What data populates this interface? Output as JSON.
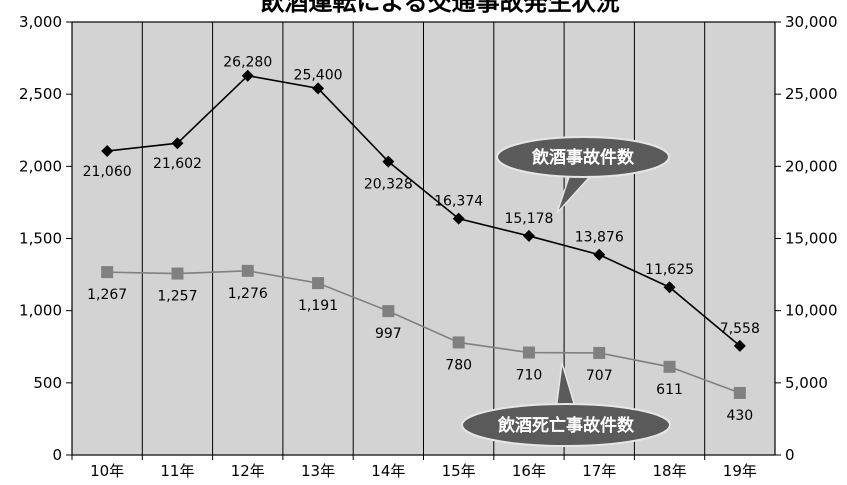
{
  "chart_data": {
    "type": "line",
    "title": "飲酒運転による交通事故発生状況",
    "categories": [
      "10年",
      "11年",
      "12年",
      "13年",
      "14年",
      "15年",
      "16年",
      "17年",
      "18年",
      "19年"
    ],
    "y_left": {
      "ylim": [
        0,
        3000
      ],
      "ticks": [
        "0",
        "500",
        "1,000",
        "1,500",
        "2,000",
        "2,500",
        "3,000"
      ],
      "tick_values": [
        0,
        500,
        1000,
        1500,
        2000,
        2500,
        3000
      ]
    },
    "y_right": {
      "ylim": [
        0,
        30000
      ],
      "ticks": [
        "0",
        "5,000",
        "10,000",
        "15,000",
        "20,000",
        "25,000",
        "30,000"
      ],
      "tick_values": [
        0,
        5000,
        10000,
        15000,
        20000,
        25000,
        30000
      ]
    },
    "series": [
      {
        "name": "飲酒事故件数",
        "axis": "right",
        "marker": "diamond",
        "color": "#000000",
        "values": [
          21060,
          21602,
          26280,
          25400,
          20328,
          16374,
          15178,
          13876,
          11625,
          7558
        ],
        "labels": [
          "21,060",
          "21,602",
          "26,280",
          "25,400",
          "20,328",
          "16,374",
          "15,178",
          "13,876",
          "11,625",
          "7,558"
        ]
      },
      {
        "name": "飲酒死亡事故件数",
        "axis": "left",
        "marker": "square",
        "color": "#808080",
        "values": [
          1267,
          1257,
          1276,
          1191,
          997,
          780,
          710,
          707,
          611,
          430
        ],
        "labels": [
          "1,267",
          "1,257",
          "1,276",
          "1,191",
          "997",
          "780",
          "710",
          "707",
          "611",
          "430"
        ]
      }
    ],
    "plot_background": "#d3d3d3",
    "grid": "vertical",
    "legend": "callouts"
  }
}
